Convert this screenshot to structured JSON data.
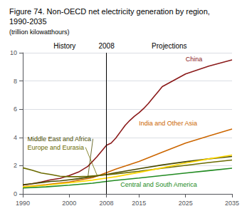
{
  "chart_data": {
    "type": "line",
    "title": "Figure 74. Non-OECD net electricity generation by region, 1990-2035",
    "subtitle": "(trillion kilowatthours)",
    "xlim": [
      1990,
      2035
    ],
    "xticks": [
      1990,
      2000,
      2008,
      2015,
      2025,
      2035
    ],
    "ylim": [
      0,
      10
    ],
    "yticks": [
      0,
      2,
      4,
      6,
      8,
      10
    ],
    "grid": true,
    "annotations": [
      {
        "text": "History",
        "x": [
          1990,
          2008
        ]
      },
      {
        "text": "2008",
        "x": 2008
      },
      {
        "text": "Projections",
        "x": [
          2008,
          2035
        ]
      }
    ],
    "series": [
      {
        "name": "China",
        "color": "#8B1A1A",
        "x": [
          1990,
          1992,
          1994,
          1996,
          1998,
          2000,
          2002,
          2004,
          2006,
          2008,
          2009,
          2010,
          2011,
          2012,
          2013,
          2014,
          2015,
          2016,
          2017,
          2018,
          2019,
          2020,
          2025,
          2030,
          2035
        ],
        "values": [
          0.62,
          0.72,
          0.85,
          1.0,
          1.1,
          1.3,
          1.55,
          1.95,
          2.65,
          3.45,
          3.6,
          3.95,
          4.4,
          4.85,
          5.2,
          5.5,
          5.75,
          6.05,
          6.4,
          6.8,
          7.2,
          7.6,
          8.5,
          9.05,
          9.5
        ]
      },
      {
        "name": "India and Other Asia",
        "color": "#CC6600",
        "x": [
          1990,
          1995,
          2000,
          2005,
          2008,
          2010,
          2015,
          2020,
          2025,
          2030,
          2035
        ],
        "values": [
          0.5,
          0.65,
          0.85,
          1.15,
          1.5,
          1.75,
          2.3,
          2.95,
          3.6,
          4.1,
          4.6
        ]
      },
      {
        "name": "Middle East and Africa",
        "color": "#4a4a00",
        "x": [
          1990,
          1992,
          1994,
          1996,
          1998,
          2000,
          2002,
          2004,
          2006,
          2008,
          2010,
          2015,
          2020,
          2025,
          2030,
          2035
        ],
        "values": [
          0.65,
          0.72,
          0.8,
          0.88,
          0.92,
          1.0,
          1.08,
          1.18,
          1.28,
          1.38,
          1.5,
          1.78,
          2.05,
          2.28,
          2.48,
          2.65
        ]
      },
      {
        "name": "Europe and Eurasia",
        "color": "#6B6B00",
        "x": [
          1990,
          1992,
          1994,
          1996,
          1998,
          2000,
          2002,
          2004,
          2006,
          2008,
          2010,
          2015,
          2020,
          2025,
          2030,
          2035
        ],
        "values": [
          1.85,
          1.68,
          1.48,
          1.38,
          1.25,
          1.22,
          1.22,
          1.25,
          1.3,
          1.35,
          1.42,
          1.6,
          1.82,
          2.02,
          2.22,
          2.4
        ]
      },
      {
        "color": "#FFD700",
        "x": [
          1990,
          1995,
          2000,
          2005,
          2008,
          2010,
          2015,
          2020,
          2025,
          2030,
          2035
        ],
        "values": [
          0.5,
          0.62,
          0.78,
          0.98,
          1.12,
          1.22,
          1.52,
          1.85,
          2.18,
          2.48,
          2.75
        ]
      },
      {
        "name": "Central and South America",
        "color": "#228B22",
        "x": [
          1990,
          1995,
          2000,
          2005,
          2008,
          2010,
          2015,
          2020,
          2025,
          2030,
          2035
        ],
        "values": [
          0.42,
          0.5,
          0.62,
          0.76,
          0.88,
          0.96,
          1.12,
          1.3,
          1.48,
          1.65,
          1.82
        ]
      }
    ]
  }
}
